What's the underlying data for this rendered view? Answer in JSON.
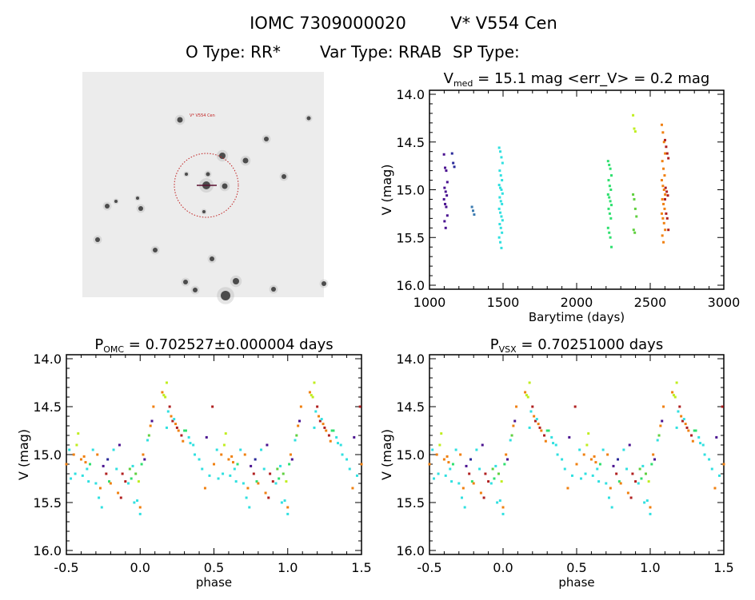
{
  "header": {
    "title_id": "IOMC 7309000020",
    "title_name": "V* V554 Cen",
    "o_type": "O Type: RR*",
    "var_type": "Var Type: RRAB",
    "sp_type": "SP Type:"
  },
  "finder_image": {
    "target_label": "V* V554 Cen",
    "marker_color": "#c02020"
  },
  "season_colors": [
    "#4a1290",
    "#2a2a9a",
    "#3a7ab0",
    "#30e0e0",
    "#30e070",
    "#c0ee20",
    "#60d040",
    "#f08010",
    "#b02020"
  ],
  "chart_data": [
    {
      "type": "scatter",
      "title_main": "V",
      "title_sub": "med",
      "title_rest": " = 15.1 mag <err_V> = 0.2 mag",
      "xlabel": "Barytime (days)",
      "ylabel": "V (mag)",
      "xlim": [
        1000,
        3000
      ],
      "ylim": [
        16.0,
        14.0
      ],
      "xticks": [
        "1000",
        "1500",
        "2000",
        "2500",
        "3000"
      ],
      "yticks": [
        "14.0",
        "14.5",
        "15.0",
        "15.5",
        "16.0"
      ],
      "grid": false,
      "series": [
        {
          "color_index": 0,
          "x": 1110,
          "y": [
            14.63,
            14.77,
            14.8,
            14.92,
            14.98,
            15.02,
            15.06,
            15.1,
            15.15,
            15.18,
            15.27,
            15.33,
            15.4
          ]
        },
        {
          "color_index": 1,
          "x": 1165,
          "y": [
            14.62,
            14.72,
            14.76
          ]
        },
        {
          "color_index": 2,
          "x": 1300,
          "y": [
            15.18,
            15.22,
            15.26
          ]
        },
        {
          "color_index": 3,
          "x": 1485,
          "y": [
            14.56,
            14.6,
            14.66,
            14.72,
            14.8,
            14.85,
            14.9,
            14.95,
            14.98,
            15.0,
            15.04,
            15.08,
            15.12,
            15.15,
            15.2,
            15.24,
            15.28,
            15.32,
            15.36,
            15.4,
            15.45,
            15.5,
            15.55,
            15.61
          ]
        },
        {
          "color_index": 4,
          "x": 2225,
          "y": [
            14.7,
            14.74,
            14.78,
            14.85,
            14.9,
            14.96,
            15.0,
            15.05,
            15.08,
            15.12,
            15.16,
            15.2,
            15.25,
            15.3,
            15.4,
            15.45,
            15.5,
            15.6
          ]
        },
        {
          "color_index": 5,
          "x": 2395,
          "y": [
            14.22,
            14.36,
            14.39
          ]
        },
        {
          "color_index": 6,
          "x": 2395,
          "y": [
            15.05,
            15.1,
            15.2,
            15.28,
            15.42,
            15.45
          ]
        },
        {
          "color_index": 7,
          "x": 2590,
          "y": [
            14.32,
            14.4,
            14.5,
            14.62,
            14.7,
            14.78,
            14.85,
            14.9,
            14.96,
            15.0,
            15.05,
            15.1,
            15.15,
            15.2,
            15.25,
            15.3,
            15.35,
            15.42,
            15.48,
            15.55
          ]
        },
        {
          "color_index": 8,
          "x": 2612,
          "y": [
            14.48,
            14.55,
            14.62,
            14.67,
            14.98,
            15.02,
            15.06,
            15.1,
            15.25,
            15.3,
            15.42
          ]
        }
      ]
    },
    {
      "type": "scatter",
      "title_main": "P",
      "title_sub": "OMC",
      "title_rest": " = 0.702527±0.000004 days",
      "xlabel": "phase",
      "ylabel": "V (mag)",
      "xlim": [
        -0.5,
        1.5
      ],
      "ylim": [
        16.0,
        14.0
      ],
      "xticks": [
        "-0.5",
        "0.0",
        "0.5",
        "1.0",
        "1.5"
      ],
      "yticks": [
        "14.0",
        "14.5",
        "15.0",
        "15.5",
        "16.0"
      ],
      "grid": false,
      "points_ref": "phase_points"
    },
    {
      "type": "scatter",
      "title_main": "P",
      "title_sub": "VSX",
      "title_rest": " = 0.70251000 days",
      "xlabel": "phase",
      "ylabel": "V (mag)",
      "xlim": [
        -0.5,
        1.5
      ],
      "ylim": [
        16.0,
        14.0
      ],
      "xticks": [
        "-0.5",
        "0.0",
        "0.5",
        "1.0",
        "1.5"
      ],
      "yticks": [
        "14.0",
        "14.5",
        "15.0",
        "15.5",
        "16.0"
      ],
      "grid": false,
      "points_ref": "phase_points"
    }
  ],
  "phase_points": [
    [
      0.15,
      14.35,
      7
    ],
    [
      0.16,
      14.38,
      5
    ],
    [
      0.17,
      14.4,
      5
    ],
    [
      0.18,
      14.25,
      5
    ],
    [
      0.2,
      14.5,
      8
    ],
    [
      0.19,
      14.55,
      3
    ],
    [
      0.21,
      14.6,
      7
    ],
    [
      0.22,
      14.65,
      8
    ],
    [
      0.24,
      14.68,
      7
    ],
    [
      0.25,
      14.72,
      8
    ],
    [
      0.26,
      14.75,
      7
    ],
    [
      0.28,
      14.8,
      8
    ],
    [
      0.3,
      14.75,
      4
    ],
    [
      0.31,
      14.75,
      4
    ],
    [
      0.33,
      14.82,
      3
    ],
    [
      0.34,
      14.88,
      3
    ],
    [
      0.36,
      14.9,
      3
    ],
    [
      0.37,
      15.0,
      3
    ],
    [
      0.29,
      14.86,
      7
    ],
    [
      0.23,
      14.63,
      3
    ],
    [
      0.18,
      14.72,
      3
    ],
    [
      0.4,
      15.05,
      3
    ],
    [
      0.42,
      15.15,
      3
    ],
    [
      0.45,
      14.82,
      0
    ],
    [
      0.47,
      15.22,
      3
    ],
    [
      0.49,
      14.5,
      8
    ],
    [
      0.5,
      15.1,
      7
    ],
    [
      0.52,
      14.95,
      3
    ],
    [
      0.55,
      15.0,
      7
    ],
    [
      0.57,
      14.9,
      5
    ],
    [
      0.58,
      14.78,
      5
    ],
    [
      0.6,
      15.05,
      7
    ],
    [
      0.62,
      15.02,
      7
    ],
    [
      0.63,
      15.08,
      7
    ],
    [
      0.64,
      15.15,
      3
    ],
    [
      0.66,
      15.1,
      4
    ],
    [
      0.68,
      14.95,
      3
    ],
    [
      0.7,
      15.3,
      3
    ],
    [
      0.72,
      15.45,
      3
    ],
    [
      0.74,
      15.55,
      3
    ],
    [
      0.75,
      15.12,
      0
    ],
    [
      0.77,
      15.2,
      8
    ],
    [
      0.79,
      15.28,
      4
    ],
    [
      0.8,
      15.3,
      7
    ],
    [
      0.82,
      14.95,
      3
    ],
    [
      0.84,
      15.15,
      3
    ],
    [
      0.86,
      14.9,
      0
    ],
    [
      0.88,
      15.2,
      8
    ],
    [
      0.9,
      15.28,
      8
    ],
    [
      0.92,
      15.3,
      3
    ],
    [
      0.94,
      15.25,
      4
    ],
    [
      0.95,
      15.12,
      3
    ],
    [
      0.97,
      15.2,
      6
    ],
    [
      0.99,
      15.28,
      5
    ],
    [
      1.0,
      15.55,
      7
    ],
    [
      1.0,
      15.62,
      3
    ],
    [
      0.98,
      15.48,
      3
    ],
    [
      0.96,
      15.5,
      3
    ],
    [
      0.01,
      15.1,
      4
    ],
    [
      0.02,
      15.0,
      7
    ],
    [
      0.03,
      15.05,
      0
    ],
    [
      0.05,
      14.85,
      3
    ],
    [
      0.06,
      14.8,
      6
    ],
    [
      0.07,
      14.7,
      7
    ],
    [
      0.08,
      14.65,
      0
    ],
    [
      0.09,
      14.5,
      7
    ],
    [
      0.85,
      15.4,
      7
    ],
    [
      0.73,
      15.35,
      7
    ],
    [
      0.53,
      15.25,
      3
    ],
    [
      0.56,
      15.2,
      3
    ],
    [
      0.61,
      15.22,
      3
    ],
    [
      0.65,
      15.28,
      3
    ],
    [
      0.71,
      15.0,
      7
    ],
    [
      0.78,
      15.05,
      1
    ],
    [
      0.93,
      15.15,
      6
    ],
    [
      0.44,
      15.35,
      7
    ],
    [
      0.87,
      15.45,
      8
    ]
  ]
}
